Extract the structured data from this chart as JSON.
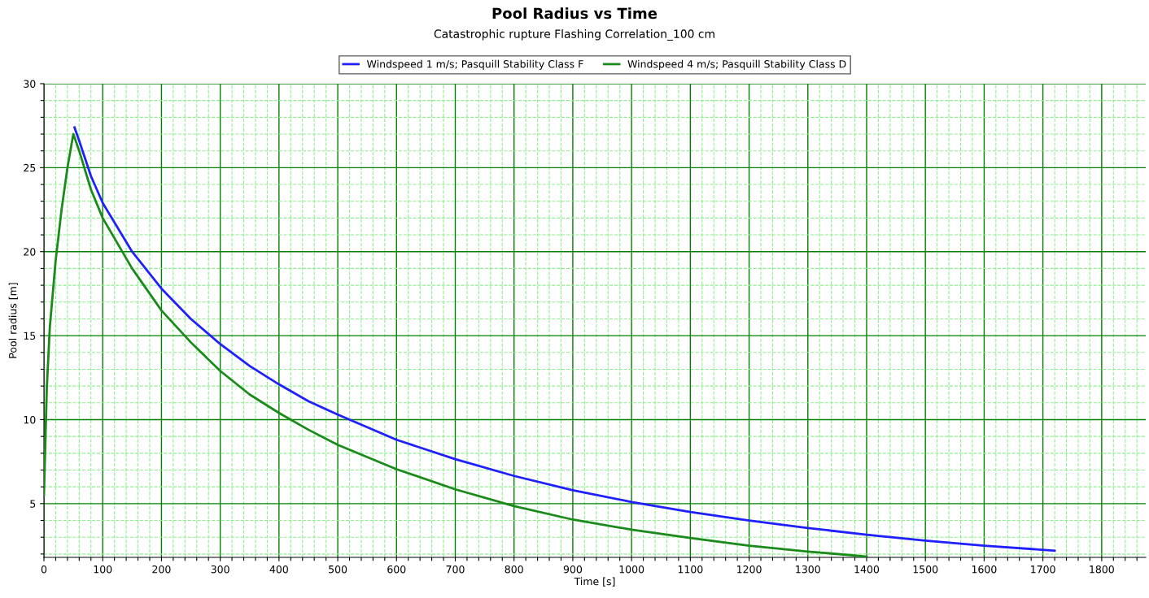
{
  "chart_data": {
    "type": "line",
    "title": "Pool Radius vs Time",
    "subtitle": "Catastrophic rupture Flashing Correlation_100 cm",
    "xlabel": "Time [s]",
    "ylabel": "Pool radius [m]",
    "xlim": [
      0,
      1875
    ],
    "xticks": [
      0,
      {
        "value": 20,
        "label": null
      },
      {
        "value": 40,
        "label": null
      },
      {
        "value": 60,
        "label": null
      },
      {
        "value": 80,
        "label": null
      },
      100,
      {
        "value": 120,
        "label": null
      },
      {
        "value": 140,
        "label": null
      },
      {
        "value": 160,
        "label": null
      },
      {
        "value": 180,
        "label": null
      },
      200,
      {
        "value": 220,
        "label": null
      },
      {
        "value": 240,
        "label": null
      },
      {
        "value": 260,
        "label": null
      },
      {
        "value": 280,
        "label": null
      },
      300,
      {
        "value": 320,
        "label": null
      },
      {
        "value": 340,
        "label": null
      },
      {
        "value": 360,
        "label": null
      },
      {
        "value": 380,
        "label": null
      },
      400,
      {
        "value": 420,
        "label": null
      },
      {
        "value": 440,
        "label": null
      },
      {
        "value": 460,
        "label": null
      },
      {
        "value": 480,
        "label": null
      },
      500,
      {
        "value": 520,
        "label": null
      },
      {
        "value": 540,
        "label": null
      },
      {
        "value": 560,
        "label": null
      },
      {
        "value": 580,
        "label": null
      },
      600,
      {
        "value": 620,
        "label": null
      },
      {
        "value": 640,
        "label": null
      },
      {
        "value": 660,
        "label": null
      },
      {
        "value": 680,
        "label": null
      },
      700,
      {
        "value": 720,
        "label": null
      },
      {
        "value": 740,
        "label": null
      },
      {
        "value": 760,
        "label": null
      },
      {
        "value": 780,
        "label": null
      },
      800,
      {
        "value": 820,
        "label": null
      },
      {
        "value": 840,
        "label": null
      },
      {
        "value": 860,
        "label": null
      },
      {
        "value": 880,
        "label": null
      },
      900,
      {
        "value": 920,
        "label": null
      },
      {
        "value": 940,
        "label": null
      },
      {
        "value": 960,
        "label": null
      },
      {
        "value": 980,
        "label": null
      },
      1000,
      {
        "value": 1020,
        "label": null
      },
      {
        "value": 1040,
        "label": null
      },
      {
        "value": 1060,
        "label": null
      },
      {
        "value": 1080,
        "label": null
      },
      1100,
      {
        "value": 1120,
        "label": null
      },
      {
        "value": 1140,
        "label": null
      },
      {
        "value": 1160,
        "label": null
      },
      {
        "value": 1180,
        "label": null
      },
      1200,
      {
        "value": 1220,
        "label": null
      },
      {
        "value": 1240,
        "label": null
      },
      {
        "value": 1260,
        "label": null
      },
      {
        "value": 1280,
        "label": null
      },
      1300,
      {
        "value": 1320,
        "label": null
      },
      {
        "value": 1340,
        "label": null
      },
      {
        "value": 1360,
        "label": null
      },
      {
        "value": 1380,
        "label": null
      },
      1400,
      {
        "value": 1420,
        "label": null
      },
      {
        "value": 1440,
        "label": null
      },
      {
        "value": 1460,
        "label": null
      },
      {
        "value": 1480,
        "label": null
      },
      1500,
      {
        "value": 1520,
        "label": null
      },
      {
        "value": 1540,
        "label": null
      },
      {
        "value": 1560,
        "label": null
      },
      {
        "value": 1580,
        "label": null
      },
      1600,
      {
        "value": 1620,
        "label": null
      },
      {
        "value": 1640,
        "label": null
      },
      {
        "value": 1660,
        "label": null
      },
      {
        "value": 1680,
        "label": null
      },
      1700,
      {
        "value": 1720,
        "label": null
      },
      {
        "value": 1740,
        "label": null
      },
      {
        "value": 1760,
        "label": null
      },
      {
        "value": 1780,
        "label": null
      },
      1800,
      {
        "value": 1820,
        "label": null
      },
      {
        "value": 1840,
        "label": null
      },
      {
        "value": 1860,
        "label": null
      }
    ],
    "ylim": [
      1.8,
      30
    ],
    "yticks": [
      {
        "value": 2,
        "label": null
      },
      {
        "value": 3,
        "label": null
      },
      {
        "value": 4,
        "label": null
      },
      5,
      {
        "value": 6,
        "label": null
      },
      {
        "value": 7,
        "label": null
      },
      {
        "value": 8,
        "label": null
      },
      {
        "value": 9,
        "label": null
      },
      10,
      {
        "value": 11,
        "label": null
      },
      {
        "value": 12,
        "label": null
      },
      {
        "value": 13,
        "label": null
      },
      {
        "value": 14,
        "label": null
      },
      15,
      {
        "value": 16,
        "label": null
      },
      {
        "value": 17,
        "label": null
      },
      {
        "value": 18,
        "label": null
      },
      {
        "value": 19,
        "label": null
      },
      20,
      {
        "value": 21,
        "label": null
      },
      {
        "value": 22,
        "label": null
      },
      {
        "value": 23,
        "label": null
      },
      {
        "value": 24,
        "label": null
      },
      25,
      {
        "value": 26,
        "label": null
      },
      {
        "value": 27,
        "label": null
      },
      {
        "value": 28,
        "label": null
      },
      {
        "value": 29,
        "label": null
      },
      30
    ],
    "grid": true,
    "legend": "top",
    "marker": "none",
    "line_style": "solid",
    "series": [
      {
        "name": "Windspeed 1 m/s; Pasquill Stability Class F",
        "color": "#1f1fff",
        "x": [
          52,
          60,
          80,
          100,
          150,
          200,
          250,
          300,
          350,
          400,
          450,
          500,
          600,
          700,
          800,
          900,
          1000,
          1100,
          1200,
          1300,
          1400,
          1500,
          1600,
          1720
        ],
        "values": [
          27.4,
          26.6,
          24.5,
          22.9,
          20,
          17.8,
          16,
          14.5,
          13.2,
          12.1,
          11.1,
          10.3,
          8.8,
          7.65,
          6.65,
          5.8,
          5.1,
          4.5,
          4.0,
          3.55,
          3.15,
          2.8,
          2.5,
          2.2
        ]
      },
      {
        "name": "Windspeed 4 m/s; Pasquill Stability Class D",
        "color": "#1a8a1a",
        "x": [
          0,
          5,
          10,
          20,
          30,
          40,
          50,
          60,
          80,
          100,
          150,
          200,
          250,
          300,
          350,
          400,
          450,
          500,
          600,
          700,
          800,
          900,
          1000,
          1100,
          1200,
          1300,
          1400
        ],
        "values": [
          5.5,
          12,
          15.5,
          19.5,
          22.5,
          25,
          27.0,
          26.0,
          23.7,
          22.0,
          19.0,
          16.5,
          14.6,
          12.9,
          11.5,
          10.4,
          9.4,
          8.5,
          7.05,
          5.85,
          4.85,
          4.05,
          3.45,
          2.95,
          2.5,
          2.15,
          1.85
        ]
      }
    ]
  }
}
